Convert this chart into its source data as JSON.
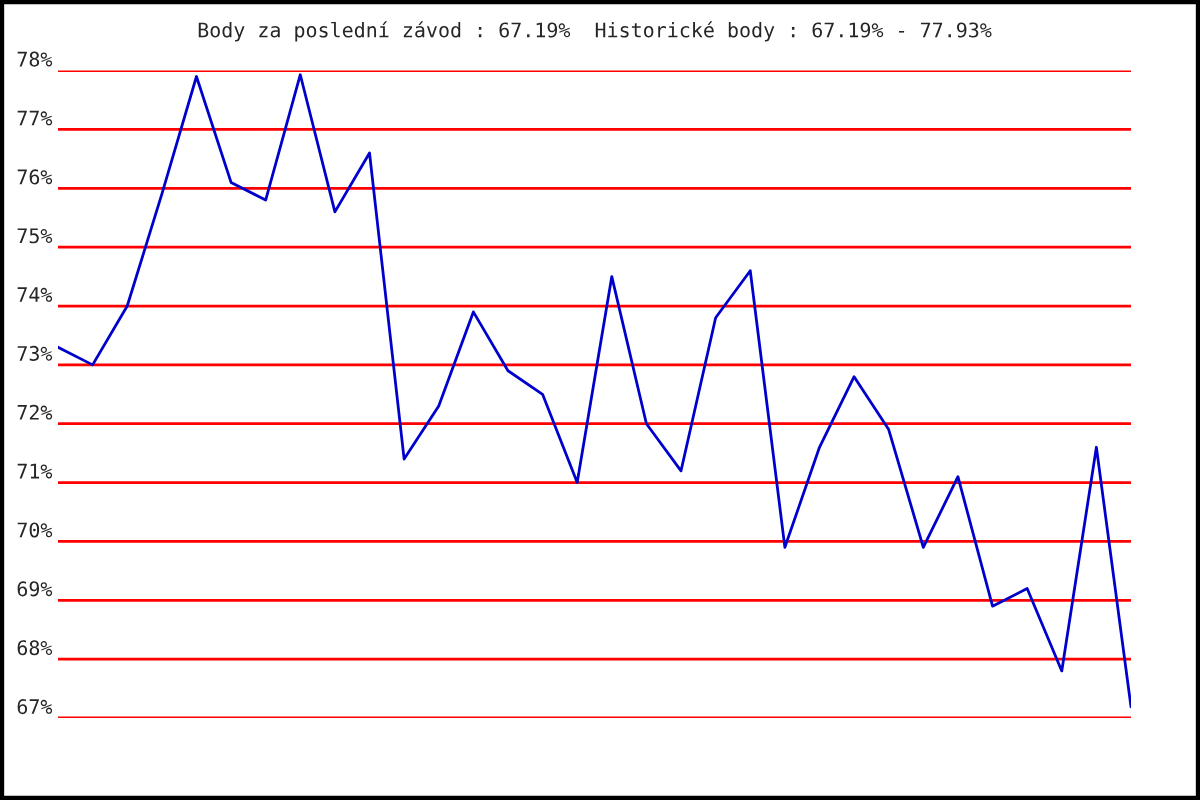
{
  "chart_data": {
    "type": "line",
    "title": "Body za poslední závod : 67.19%  Historické body : 67.19% - 77.93%",
    "categories": [
      null,
      null,
      null,
      null,
      null,
      null,
      null,
      null,
      null,
      null,
      null,
      null,
      null,
      null,
      null,
      null,
      null,
      null,
      null,
      null,
      null,
      null,
      null,
      null,
      null,
      null,
      null,
      null,
      null,
      null,
      null,
      null
    ],
    "series": [
      {
        "color": "#0000cc",
        "values": [
          73.3,
          73.0,
          74.0,
          75.9,
          77.9,
          76.1,
          75.8,
          77.93,
          75.6,
          76.6,
          71.4,
          72.3,
          73.9,
          72.9,
          72.5,
          71.0,
          74.5,
          72.0,
          71.2,
          73.8,
          74.6,
          69.9,
          71.6,
          72.8,
          71.9,
          69.9,
          71.1,
          68.9,
          69.2,
          67.8,
          71.6,
          67.19
        ]
      }
    ],
    "ylim": [
      67,
      78
    ],
    "yticks": [
      {
        "value": 67,
        "label": "67%"
      },
      {
        "value": 68,
        "label": "68%"
      },
      {
        "value": 69,
        "label": "69%"
      },
      {
        "value": 70,
        "label": "70%"
      },
      {
        "value": 71,
        "label": "71%"
      },
      {
        "value": 72,
        "label": "72%"
      },
      {
        "value": 73,
        "label": "73%"
      },
      {
        "value": 74,
        "label": "74%"
      },
      {
        "value": 75,
        "label": "75%"
      },
      {
        "value": 76,
        "label": "76%"
      },
      {
        "value": 77,
        "label": "77%"
      },
      {
        "value": 78,
        "label": "78%"
      }
    ],
    "grid": "y",
    "tick_labels": "y",
    "line_style": "solid"
  }
}
